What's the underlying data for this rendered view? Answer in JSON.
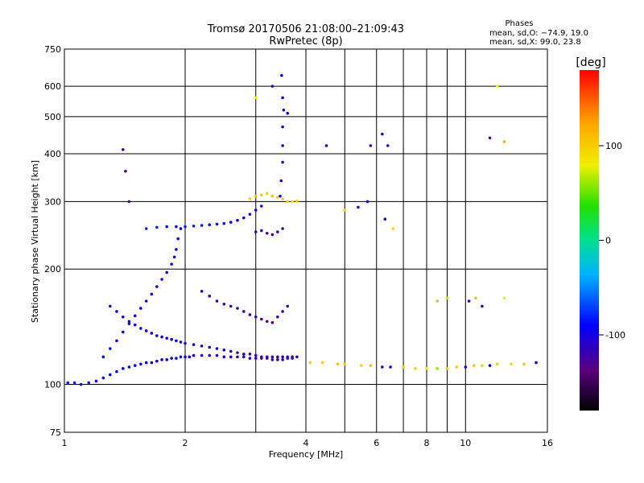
{
  "chart_data": {
    "type": "scatter",
    "title": "Tromsø 20170506 21:08:00–21:09:43",
    "subtitle": "RwPretec (8p)",
    "xlabel": "Frequency [MHz]",
    "ylabel": "Stationary phase Virtual Height [km]",
    "x_scale": "log",
    "y_scale": "log",
    "xlim": [
      1,
      16
    ],
    "ylim": [
      75,
      750
    ],
    "x_ticks": [
      1,
      2,
      4,
      6,
      8,
      10,
      16
    ],
    "y_ticks": [
      75,
      100,
      200,
      300,
      400,
      500,
      600,
      750
    ],
    "x_grid": [
      2,
      3,
      4,
      5,
      6,
      7,
      8,
      9,
      10
    ],
    "y_grid": [
      100,
      200,
      300,
      400,
      500,
      600
    ],
    "grid": true,
    "legend_block": {
      "heading": "Phases",
      "line1": "mean, sd,O: −74.9, 19.0",
      "line2": "mean, sd,X:  99.0, 23.8"
    },
    "colorbar": {
      "label": "[deg]",
      "range": [
        -180,
        180
      ],
      "ticks": [
        100,
        0,
        -100
      ]
    },
    "series": [
      {
        "x": [
          1.02,
          1.06,
          1.1,
          1.15,
          1.2,
          1.25,
          1.3,
          1.35,
          1.4,
          1.45,
          1.5,
          1.55,
          1.6,
          1.65,
          1.7,
          1.75,
          1.8,
          1.85,
          1.9,
          1.95,
          2.0,
          2.05,
          2.1,
          2.2,
          2.3,
          2.4,
          2.5,
          2.6,
          2.7,
          2.8,
          2.9,
          3.0,
          3.1,
          3.2,
          3.3,
          3.4,
          3.5,
          3.6,
          3.7,
          3.8,
          1.3,
          1.35,
          1.4,
          1.45,
          1.5,
          1.55,
          1.6,
          1.65,
          1.7,
          1.75,
          1.8,
          1.85,
          1.9,
          1.95,
          2.0,
          2.1,
          2.2,
          2.3,
          2.4,
          2.5,
          2.6,
          2.7,
          2.8,
          2.9,
          3.0,
          3.1,
          3.2,
          3.3,
          3.4,
          3.5,
          3.6,
          3.7,
          1.25,
          1.3,
          1.35,
          1.4,
          1.45,
          1.5,
          1.55,
          1.6,
          1.65,
          1.7,
          1.75,
          1.8,
          1.85,
          1.88,
          1.9,
          1.92,
          1.95,
          1.6,
          1.7,
          1.8,
          1.9,
          2.0,
          2.1,
          2.2,
          2.3,
          2.4,
          2.5,
          2.6,
          2.7,
          2.8,
          2.9,
          3.0,
          3.1,
          3.45,
          3.47,
          3.5,
          3.5,
          3.5,
          3.52,
          3.5,
          3.48,
          3.0,
          3.1,
          3.2,
          3.3,
          3.4,
          3.5,
          2.2,
          2.3,
          2.4,
          2.5,
          2.6,
          2.7,
          2.8,
          2.9,
          3.0,
          3.1,
          3.2,
          3.3,
          3.4,
          3.5,
          3.6,
          2.9,
          3.0,
          3.1,
          3.2,
          3.3,
          3.4,
          3.5,
          3.6,
          3.7,
          3.8,
          4.1,
          4.4,
          4.8,
          5.0,
          5.5,
          5.8,
          6.2,
          6.5,
          7.0,
          7.5,
          8.0,
          8.5,
          9.0,
          9.5,
          10.0,
          10.5,
          11.0,
          11.5,
          12.0,
          13.0,
          14.0,
          15.0,
          5.0,
          5.4,
          5.7,
          6.3,
          6.6,
          8.5,
          9.0,
          10.2,
          10.6,
          11.0,
          12.5,
          1.4,
          1.42,
          1.45,
          3.0,
          3.3,
          3.6,
          4.5,
          5.8,
          6.2,
          6.4,
          11.5,
          12.0,
          12.5
        ],
        "y": [
          101,
          101,
          100,
          101,
          102,
          104,
          106,
          108,
          110,
          111,
          112,
          113,
          114,
          114,
          115,
          116,
          116,
          117,
          117,
          118,
          118,
          118,
          119,
          119,
          119,
          119,
          118,
          118,
          118,
          118,
          117,
          117,
          117,
          117,
          116,
          116,
          116,
          117,
          117,
          118,
          160,
          155,
          150,
          146,
          143,
          140,
          138,
          136,
          134,
          133,
          132,
          131,
          130,
          129,
          128,
          127,
          126,
          125,
          124,
          123,
          122,
          121,
          120,
          120,
          119,
          118,
          118,
          118,
          118,
          118,
          118,
          118,
          118,
          124,
          130,
          137,
          144,
          151,
          158,
          165,
          172,
          180,
          188,
          196,
          206,
          215,
          225,
          240,
          255,
          255,
          257,
          258,
          258,
          258,
          259,
          260,
          261,
          262,
          263,
          265,
          268,
          272,
          278,
          285,
          292,
          310,
          340,
          380,
          420,
          470,
          520,
          560,
          640,
          250,
          252,
          248,
          246,
          250,
          255,
          175,
          170,
          165,
          162,
          160,
          158,
          155,
          152,
          150,
          148,
          146,
          145,
          150,
          155,
          160,
          305,
          310,
          312,
          315,
          310,
          308,
          305,
          300,
          300,
          301,
          114,
          114,
          113,
          113,
          112,
          112,
          111,
          111,
          111,
          110,
          110,
          110,
          110,
          111,
          111,
          112,
          112,
          112,
          113,
          113,
          113,
          114,
          285,
          290,
          300,
          270,
          255,
          165,
          168,
          165,
          168,
          160,
          168,
          410,
          360,
          300,
          560,
          600,
          510,
          420,
          420,
          450,
          420,
          440,
          600,
          430
        ],
        "phase": [
          -80,
          -80,
          -85,
          -85,
          -90,
          -90,
          -90,
          -95,
          -90,
          -90,
          -95,
          -95,
          -90,
          -90,
          -95,
          -95,
          -100,
          -95,
          -100,
          -100,
          -95,
          -95,
          -100,
          -100,
          -100,
          -100,
          -100,
          -100,
          -110,
          -110,
          -110,
          -110,
          -115,
          -115,
          -110,
          -110,
          -110,
          -110,
          -110,
          -110,
          -100,
          -100,
          -105,
          -100,
          -100,
          -95,
          -95,
          -100,
          -100,
          -100,
          -95,
          -100,
          -95,
          -100,
          -100,
          -100,
          -110,
          -110,
          -110,
          -110,
          -110,
          -110,
          -110,
          -115,
          -115,
          -115,
          -115,
          -115,
          -115,
          -115,
          -110,
          -110,
          -90,
          -90,
          -95,
          -95,
          -90,
          -95,
          -95,
          -95,
          -100,
          -100,
          -95,
          -100,
          -100,
          -100,
          -100,
          -95,
          -95,
          -80,
          -80,
          -85,
          -85,
          -80,
          -80,
          -85,
          -85,
          -85,
          -90,
          -90,
          -95,
          -95,
          -100,
          -100,
          -105,
          -100,
          -105,
          -110,
          -110,
          -115,
          -110,
          -100,
          -90,
          -120,
          -120,
          -125,
          -125,
          -120,
          -120,
          -120,
          -125,
          -125,
          -120,
          -120,
          -125,
          -125,
          -125,
          -125,
          -130,
          -130,
          -130,
          -125,
          -120,
          -120,
          100,
          110,
          100,
          95,
          110,
          100,
          105,
          100,
          90,
          95,
          100,
          95,
          105,
          100,
          95,
          110,
          -110,
          -100,
          100,
          95,
          90,
          60,
          100,
          95,
          -110,
          100,
          95,
          -105,
          100,
          95,
          105,
          -110,
          100,
          -110,
          -110,
          -110,
          95,
          60,
          70,
          -100,
          60,
          -100,
          80,
          -130,
          -140,
          -130,
          80,
          -110,
          -100,
          -110,
          -120,
          -110,
          -120,
          -130,
          80,
          120
        ]
      }
    ]
  }
}
